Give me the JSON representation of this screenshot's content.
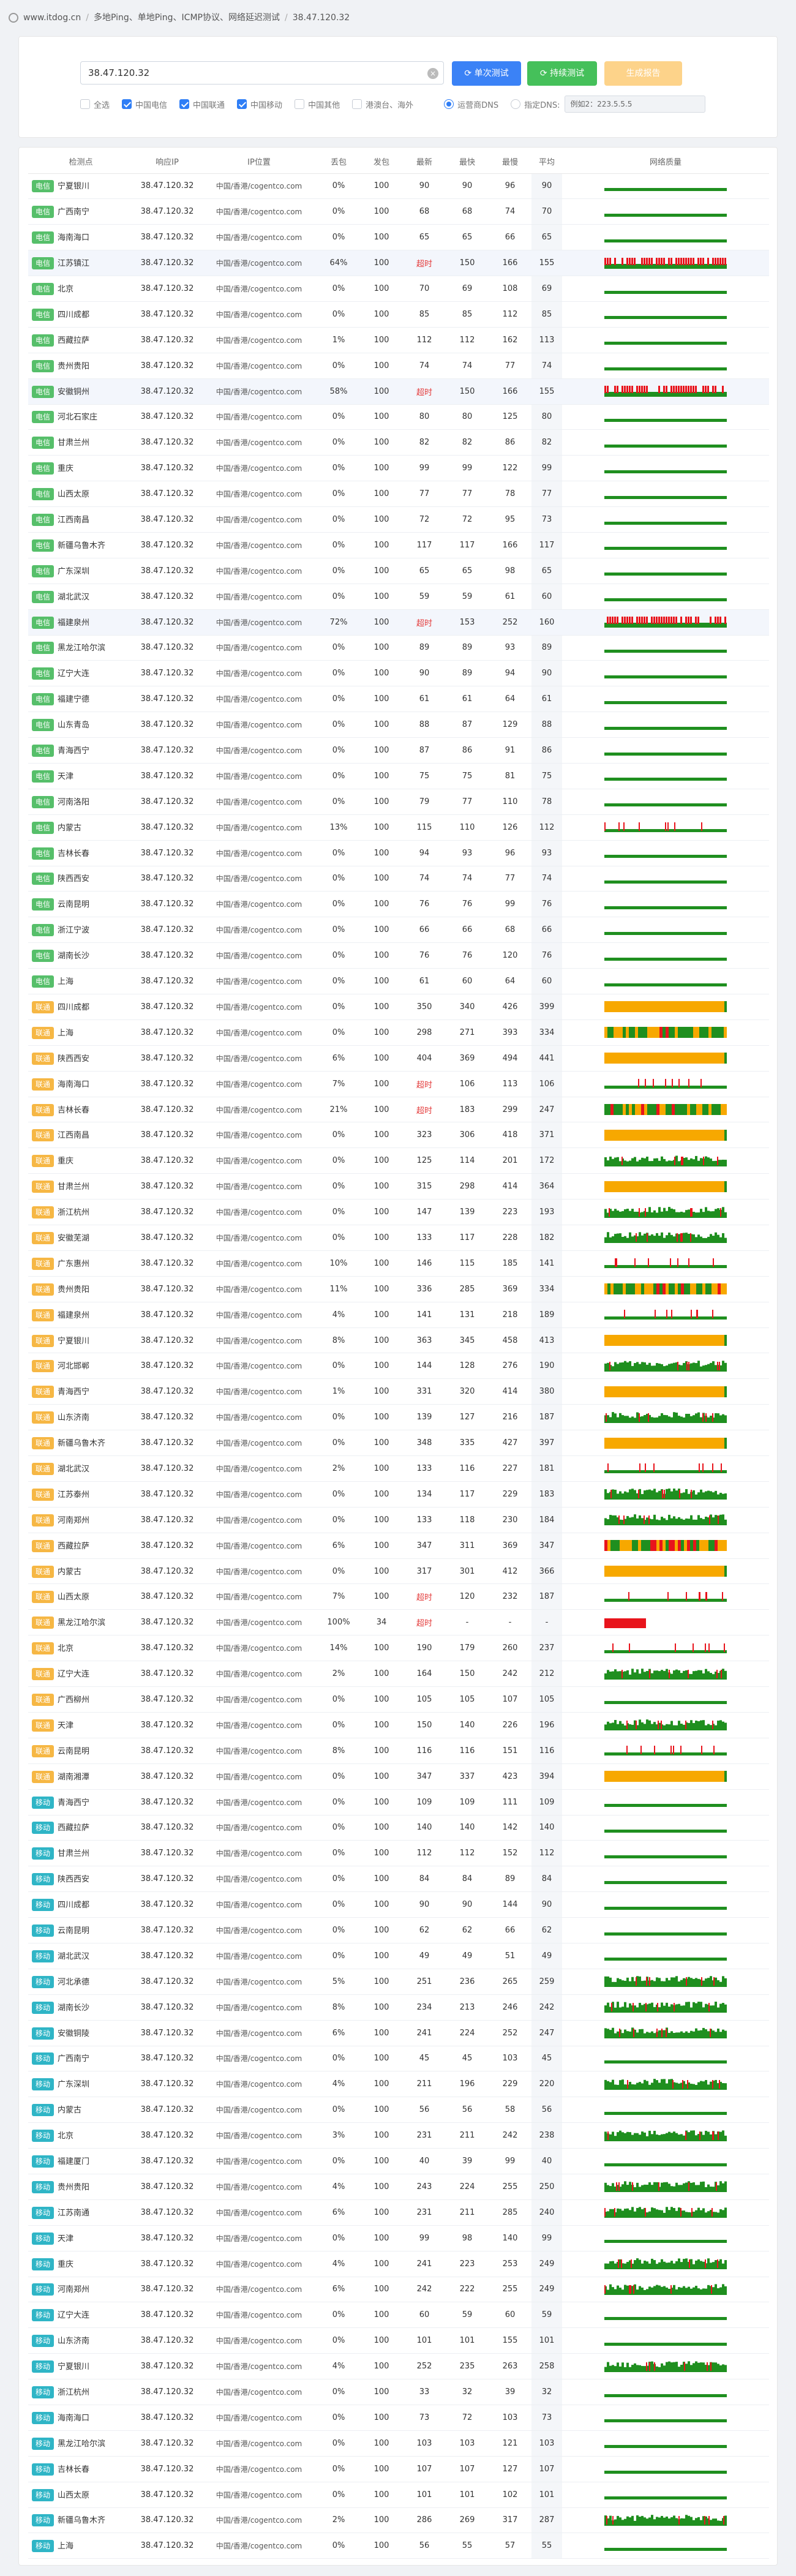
{
  "breadcrumb": {
    "items": [
      "www.itdog.cn",
      "多地Ping、单地Ping、ICMP协议、网络延迟测试",
      "38.47.120.32"
    ]
  },
  "form": {
    "ip_value": "38.47.120.32",
    "btn_single": "单次测试",
    "btn_continuous": "持续测试",
    "btn_generate": "生成报告",
    "checkboxes": [
      {
        "label": "全选",
        "checked": false
      },
      {
        "label": "中国电信",
        "checked": true
      },
      {
        "label": "中国联通",
        "checked": true
      },
      {
        "label": "中国移动",
        "checked": true
      },
      {
        "label": "中国其他",
        "checked": false
      },
      {
        "label": "港澳台、海外",
        "checked": false
      }
    ],
    "radios": [
      {
        "label": "运营商DNS",
        "checked": true
      },
      {
        "label": "指定DNS:",
        "checked": false
      }
    ],
    "dns_value": "例如2：223.5.5.5"
  },
  "table": {
    "headers": [
      "检测点",
      "响应IP",
      "IP位置",
      "丢包",
      "发包",
      "最新",
      "最快",
      "最慢",
      "平均",
      "网络质量"
    ],
    "rows": [
      [
        "电信",
        "宁夏银川",
        "38.47.120.32",
        "中国/香港/cogentco.com",
        "0%",
        "100",
        "90",
        "90",
        "96",
        "90",
        "g"
      ],
      [
        "电信",
        "广西南宁",
        "38.47.120.32",
        "中国/香港/cogentco.com",
        "0%",
        "100",
        "68",
        "68",
        "74",
        "70",
        "g"
      ],
      [
        "电信",
        "海南海口",
        "38.47.120.32",
        "中国/香港/cogentco.com",
        "0%",
        "100",
        "65",
        "65",
        "66",
        "65",
        "g"
      ],
      [
        "电信",
        "江苏镇江",
        "38.47.120.32",
        "中国/香港/cogentco.com",
        "64%",
        "100",
        "超时",
        "150",
        "166",
        "155",
        "r"
      ],
      [
        "电信",
        "北京",
        "38.47.120.32",
        "中国/香港/cogentco.com",
        "0%",
        "100",
        "70",
        "69",
        "108",
        "69",
        "g"
      ],
      [
        "电信",
        "四川成都",
        "38.47.120.32",
        "中国/香港/cogentco.com",
        "0%",
        "100",
        "85",
        "85",
        "112",
        "85",
        "g"
      ],
      [
        "电信",
        "西藏拉萨",
        "38.47.120.32",
        "中国/香港/cogentco.com",
        "1%",
        "100",
        "112",
        "112",
        "162",
        "113",
        "g"
      ],
      [
        "电信",
        "贵州贵阳",
        "38.47.120.32",
        "中国/香港/cogentco.com",
        "0%",
        "100",
        "74",
        "74",
        "77",
        "74",
        "g"
      ],
      [
        "电信",
        "安徽铜州",
        "38.47.120.32",
        "中国/香港/cogentco.com",
        "58%",
        "100",
        "超时",
        "150",
        "166",
        "155",
        "r"
      ],
      [
        "电信",
        "河北石家庄",
        "38.47.120.32",
        "中国/香港/cogentco.com",
        "0%",
        "100",
        "80",
        "80",
        "125",
        "80",
        "g"
      ],
      [
        "电信",
        "甘肃兰州",
        "38.47.120.32",
        "中国/香港/cogentco.com",
        "0%",
        "100",
        "82",
        "82",
        "86",
        "82",
        "g"
      ],
      [
        "电信",
        "重庆",
        "38.47.120.32",
        "中国/香港/cogentco.com",
        "0%",
        "100",
        "99",
        "99",
        "122",
        "99",
        "g"
      ],
      [
        "电信",
        "山西太原",
        "38.47.120.32",
        "中国/香港/cogentco.com",
        "0%",
        "100",
        "77",
        "77",
        "78",
        "77",
        "g"
      ],
      [
        "电信",
        "江西南昌",
        "38.47.120.32",
        "中国/香港/cogentco.com",
        "0%",
        "100",
        "72",
        "72",
        "95",
        "73",
        "g"
      ],
      [
        "电信",
        "新疆乌鲁木齐",
        "38.47.120.32",
        "中国/香港/cogentco.com",
        "0%",
        "100",
        "117",
        "117",
        "166",
        "117",
        "g"
      ],
      [
        "电信",
        "广东深圳",
        "38.47.120.32",
        "中国/香港/cogentco.com",
        "0%",
        "100",
        "65",
        "65",
        "98",
        "65",
        "g"
      ],
      [
        "电信",
        "湖北武汉",
        "38.47.120.32",
        "中国/香港/cogentco.com",
        "0%",
        "100",
        "59",
        "59",
        "61",
        "60",
        "g"
      ],
      [
        "电信",
        "福建泉州",
        "38.47.120.32",
        "中国/香港/cogentco.com",
        "72%",
        "100",
        "超时",
        "153",
        "252",
        "160",
        "r"
      ],
      [
        "电信",
        "黑龙江哈尔滨",
        "38.47.120.32",
        "中国/香港/cogentco.com",
        "0%",
        "100",
        "89",
        "89",
        "93",
        "89",
        "g"
      ],
      [
        "电信",
        "辽宁大连",
        "38.47.120.32",
        "中国/香港/cogentco.com",
        "0%",
        "100",
        "90",
        "89",
        "94",
        "90",
        "g"
      ],
      [
        "电信",
        "福建宁德",
        "38.47.120.32",
        "中国/香港/cogentco.com",
        "0%",
        "100",
        "61",
        "61",
        "64",
        "61",
        "g"
      ],
      [
        "电信",
        "山东青岛",
        "38.47.120.32",
        "中国/香港/cogentco.com",
        "0%",
        "100",
        "88",
        "87",
        "129",
        "88",
        "g"
      ],
      [
        "电信",
        "青海西宁",
        "38.47.120.32",
        "中国/香港/cogentco.com",
        "0%",
        "100",
        "87",
        "86",
        "91",
        "86",
        "g"
      ],
      [
        "电信",
        "天津",
        "38.47.120.32",
        "中国/香港/cogentco.com",
        "0%",
        "100",
        "75",
        "75",
        "81",
        "75",
        "g"
      ],
      [
        "电信",
        "河南洛阳",
        "38.47.120.32",
        "中国/香港/cogentco.com",
        "0%",
        "100",
        "79",
        "77",
        "110",
        "78",
        "g"
      ],
      [
        "电信",
        "内蒙古",
        "38.47.120.32",
        "中国/香港/cogentco.com",
        "13%",
        "100",
        "115",
        "110",
        "126",
        "112",
        "gs"
      ],
      [
        "电信",
        "吉林长春",
        "38.47.120.32",
        "中国/香港/cogentco.com",
        "0%",
        "100",
        "94",
        "93",
        "96",
        "93",
        "g"
      ],
      [
        "电信",
        "陕西西安",
        "38.47.120.32",
        "中国/香港/cogentco.com",
        "0%",
        "100",
        "74",
        "74",
        "77",
        "74",
        "g"
      ],
      [
        "电信",
        "云南昆明",
        "38.47.120.32",
        "中国/香港/cogentco.com",
        "0%",
        "100",
        "76",
        "76",
        "99",
        "76",
        "g"
      ],
      [
        "电信",
        "浙江宁波",
        "38.47.120.32",
        "中国/香港/cogentco.com",
        "0%",
        "100",
        "66",
        "66",
        "68",
        "66",
        "g"
      ],
      [
        "电信",
        "湖南长沙",
        "38.47.120.32",
        "中国/香港/cogentco.com",
        "0%",
        "100",
        "76",
        "76",
        "120",
        "76",
        "g"
      ],
      [
        "电信",
        "上海",
        "38.47.120.32",
        "中国/香港/cogentco.com",
        "0%",
        "100",
        "61",
        "60",
        "64",
        "60",
        "g"
      ],
      [
        "联通",
        "四川成都",
        "38.47.120.32",
        "中国/香港/cogentco.com",
        "0%",
        "100",
        "350",
        "340",
        "426",
        "399",
        "o"
      ],
      [
        "联通",
        "上海",
        "38.47.120.32",
        "中国/香港/cogentco.com",
        "0%",
        "100",
        "298",
        "271",
        "393",
        "334",
        "m"
      ],
      [
        "联通",
        "陕西西安",
        "38.47.120.32",
        "中国/香港/cogentco.com",
        "6%",
        "100",
        "404",
        "369",
        "494",
        "441",
        "o"
      ],
      [
        "联通",
        "海南海口",
        "38.47.120.32",
        "中国/香港/cogentco.com",
        "7%",
        "100",
        "超时",
        "106",
        "113",
        "106",
        "gs"
      ],
      [
        "联通",
        "吉林长春",
        "38.47.120.32",
        "中国/香港/cogentco.com",
        "21%",
        "100",
        "超时",
        "183",
        "299",
        "247",
        "m"
      ],
      [
        "联通",
        "江西南昌",
        "38.47.120.32",
        "中国/香港/cogentco.com",
        "0%",
        "100",
        "323",
        "306",
        "418",
        "371",
        "o"
      ],
      [
        "联通",
        "重庆",
        "38.47.120.32",
        "中国/香港/cogentco.com",
        "0%",
        "100",
        "125",
        "114",
        "201",
        "172",
        "gh"
      ],
      [
        "联通",
        "甘肃兰州",
        "38.47.120.32",
        "中国/香港/cogentco.com",
        "0%",
        "100",
        "315",
        "298",
        "414",
        "364",
        "o"
      ],
      [
        "联通",
        "浙江杭州",
        "38.47.120.32",
        "中国/香港/cogentco.com",
        "0%",
        "100",
        "147",
        "139",
        "223",
        "193",
        "gh"
      ],
      [
        "联通",
        "安徽芜湖",
        "38.47.120.32",
        "中国/香港/cogentco.com",
        "0%",
        "100",
        "133",
        "117",
        "228",
        "182",
        "gh"
      ],
      [
        "联通",
        "广东惠州",
        "38.47.120.32",
        "中国/香港/cogentco.com",
        "10%",
        "100",
        "146",
        "115",
        "185",
        "141",
        "gs"
      ],
      [
        "联通",
        "贵州贵阳",
        "38.47.120.32",
        "中国/香港/cogentco.com",
        "11%",
        "100",
        "336",
        "285",
        "369",
        "334",
        "m"
      ],
      [
        "联通",
        "福建泉州",
        "38.47.120.32",
        "中国/香港/cogentco.com",
        "4%",
        "100",
        "141",
        "131",
        "218",
        "189",
        "gs"
      ],
      [
        "联通",
        "宁夏银川",
        "38.47.120.32",
        "中国/香港/cogentco.com",
        "8%",
        "100",
        "363",
        "345",
        "458",
        "413",
        "o"
      ],
      [
        "联通",
        "河北邯郸",
        "38.47.120.32",
        "中国/香港/cogentco.com",
        "0%",
        "100",
        "144",
        "128",
        "276",
        "190",
        "gh"
      ],
      [
        "联通",
        "青海西宁",
        "38.47.120.32",
        "中国/香港/cogentco.com",
        "1%",
        "100",
        "331",
        "320",
        "414",
        "380",
        "o"
      ],
      [
        "联通",
        "山东济南",
        "38.47.120.32",
        "中国/香港/cogentco.com",
        "0%",
        "100",
        "139",
        "127",
        "216",
        "187",
        "gh"
      ],
      [
        "联通",
        "新疆乌鲁木齐",
        "38.47.120.32",
        "中国/香港/cogentco.com",
        "0%",
        "100",
        "348",
        "335",
        "427",
        "397",
        "o"
      ],
      [
        "联通",
        "湖北武汉",
        "38.47.120.32",
        "中国/香港/cogentco.com",
        "2%",
        "100",
        "133",
        "116",
        "227",
        "181",
        "gs"
      ],
      [
        "联通",
        "江苏泰州",
        "38.47.120.32",
        "中国/香港/cogentco.com",
        "0%",
        "100",
        "134",
        "117",
        "229",
        "183",
        "gh"
      ],
      [
        "联通",
        "河南郑州",
        "38.47.120.32",
        "中国/香港/cogentco.com",
        "0%",
        "100",
        "133",
        "118",
        "230",
        "184",
        "gh"
      ],
      [
        "联通",
        "西藏拉萨",
        "38.47.120.32",
        "中国/香港/cogentco.com",
        "6%",
        "100",
        "347",
        "311",
        "369",
        "347",
        "m"
      ],
      [
        "联通",
        "内蒙古",
        "38.47.120.32",
        "中国/香港/cogentco.com",
        "0%",
        "100",
        "317",
        "301",
        "412",
        "366",
        "o"
      ],
      [
        "联通",
        "山西太原",
        "38.47.120.32",
        "中国/香港/cogentco.com",
        "7%",
        "100",
        "超时",
        "120",
        "232",
        "187",
        "gs"
      ],
      [
        "联通",
        "黑龙江哈尔滨",
        "38.47.120.32",
        "中国/香港/cogentco.com",
        "100%",
        "34",
        "超时",
        "-",
        "-",
        "-",
        "rs"
      ],
      [
        "联通",
        "北京",
        "38.47.120.32",
        "中国/香港/cogentco.com",
        "14%",
        "100",
        "190",
        "179",
        "260",
        "237",
        "gs"
      ],
      [
        "联通",
        "辽宁大连",
        "38.47.120.32",
        "中国/香港/cogentco.com",
        "2%",
        "100",
        "164",
        "150",
        "242",
        "212",
        "gh"
      ],
      [
        "联通",
        "广西柳州",
        "38.47.120.32",
        "中国/香港/cogentco.com",
        "0%",
        "100",
        "105",
        "105",
        "107",
        "105",
        "g"
      ],
      [
        "联通",
        "天津",
        "38.47.120.32",
        "中国/香港/cogentco.com",
        "0%",
        "100",
        "150",
        "140",
        "226",
        "196",
        "gh"
      ],
      [
        "联通",
        "云南昆明",
        "38.47.120.32",
        "中国/香港/cogentco.com",
        "8%",
        "100",
        "116",
        "116",
        "151",
        "116",
        "gs"
      ],
      [
        "联通",
        "湖南湘潭",
        "38.47.120.32",
        "中国/香港/cogentco.com",
        "0%",
        "100",
        "347",
        "337",
        "423",
        "394",
        "o"
      ],
      [
        "移动",
        "青海西宁",
        "38.47.120.32",
        "中国/香港/cogentco.com",
        "0%",
        "100",
        "109",
        "109",
        "111",
        "109",
        "g"
      ],
      [
        "移动",
        "西藏拉萨",
        "38.47.120.32",
        "中国/香港/cogentco.com",
        "0%",
        "100",
        "140",
        "140",
        "142",
        "140",
        "g"
      ],
      [
        "移动",
        "甘肃兰州",
        "38.47.120.32",
        "中国/香港/cogentco.com",
        "0%",
        "100",
        "112",
        "112",
        "152",
        "112",
        "g"
      ],
      [
        "移动",
        "陕西西安",
        "38.47.120.32",
        "中国/香港/cogentco.com",
        "0%",
        "100",
        "84",
        "84",
        "89",
        "84",
        "g"
      ],
      [
        "移动",
        "四川成都",
        "38.47.120.32",
        "中国/香港/cogentco.com",
        "0%",
        "100",
        "90",
        "90",
        "144",
        "90",
        "g"
      ],
      [
        "移动",
        "云南昆明",
        "38.47.120.32",
        "中国/香港/cogentco.com",
        "0%",
        "100",
        "62",
        "62",
        "66",
        "62",
        "g"
      ],
      [
        "移动",
        "湖北武汉",
        "38.47.120.32",
        "中国/香港/cogentco.com",
        "0%",
        "100",
        "49",
        "49",
        "51",
        "49",
        "g"
      ],
      [
        "移动",
        "河北承德",
        "38.47.120.32",
        "中国/香港/cogentco.com",
        "5%",
        "100",
        "251",
        "236",
        "265",
        "259",
        "gh"
      ],
      [
        "移动",
        "湖南长沙",
        "38.47.120.32",
        "中国/香港/cogentco.com",
        "8%",
        "100",
        "234",
        "213",
        "246",
        "242",
        "gh"
      ],
      [
        "移动",
        "安徽铜陵",
        "38.47.120.32",
        "中国/香港/cogentco.com",
        "6%",
        "100",
        "241",
        "224",
        "252",
        "247",
        "gh"
      ],
      [
        "移动",
        "广西南宁",
        "38.47.120.32",
        "中国/香港/cogentco.com",
        "0%",
        "100",
        "45",
        "45",
        "103",
        "45",
        "g"
      ],
      [
        "移动",
        "广东深圳",
        "38.47.120.32",
        "中国/香港/cogentco.com",
        "4%",
        "100",
        "211",
        "196",
        "229",
        "220",
        "gh"
      ],
      [
        "移动",
        "内蒙古",
        "38.47.120.32",
        "中国/香港/cogentco.com",
        "0%",
        "100",
        "56",
        "56",
        "58",
        "56",
        "g"
      ],
      [
        "移动",
        "北京",
        "38.47.120.32",
        "中国/香港/cogentco.com",
        "3%",
        "100",
        "231",
        "211",
        "242",
        "238",
        "gh"
      ],
      [
        "移动",
        "福建厦门",
        "38.47.120.32",
        "中国/香港/cogentco.com",
        "0%",
        "100",
        "40",
        "39",
        "99",
        "40",
        "g"
      ],
      [
        "移动",
        "贵州贵阳",
        "38.47.120.32",
        "中国/香港/cogentco.com",
        "4%",
        "100",
        "243",
        "224",
        "255",
        "250",
        "gh"
      ],
      [
        "移动",
        "江苏南通",
        "38.47.120.32",
        "中国/香港/cogentco.com",
        "6%",
        "100",
        "231",
        "211",
        "285",
        "240",
        "gh"
      ],
      [
        "移动",
        "天津",
        "38.47.120.32",
        "中国/香港/cogentco.com",
        "0%",
        "100",
        "99",
        "98",
        "140",
        "99",
        "g"
      ],
      [
        "移动",
        "重庆",
        "38.47.120.32",
        "中国/香港/cogentco.com",
        "4%",
        "100",
        "241",
        "223",
        "253",
        "249",
        "gh"
      ],
      [
        "移动",
        "河南郑州",
        "38.47.120.32",
        "中国/香港/cogentco.com",
        "6%",
        "100",
        "242",
        "222",
        "255",
        "249",
        "gh"
      ],
      [
        "移动",
        "辽宁大连",
        "38.47.120.32",
        "中国/香港/cogentco.com",
        "0%",
        "100",
        "60",
        "59",
        "60",
        "59",
        "g"
      ],
      [
        "移动",
        "山东济南",
        "38.47.120.32",
        "中国/香港/cogentco.com",
        "0%",
        "100",
        "101",
        "101",
        "155",
        "101",
        "g"
      ],
      [
        "移动",
        "宁夏银川",
        "38.47.120.32",
        "中国/香港/cogentco.com",
        "4%",
        "100",
        "252",
        "235",
        "263",
        "258",
        "gh"
      ],
      [
        "移动",
        "浙江杭州",
        "38.47.120.32",
        "中国/香港/cogentco.com",
        "0%",
        "100",
        "33",
        "32",
        "39",
        "32",
        "g"
      ],
      [
        "移动",
        "海南海口",
        "38.47.120.32",
        "中国/香港/cogentco.com",
        "0%",
        "100",
        "73",
        "72",
        "103",
        "73",
        "g"
      ],
      [
        "移动",
        "黑龙江哈尔滨",
        "38.47.120.32",
        "中国/香港/cogentco.com",
        "0%",
        "100",
        "103",
        "103",
        "121",
        "103",
        "g"
      ],
      [
        "移动",
        "吉林长春",
        "38.47.120.32",
        "中国/香港/cogentco.com",
        "0%",
        "100",
        "107",
        "107",
        "127",
        "107",
        "g"
      ],
      [
        "移动",
        "山西太原",
        "38.47.120.32",
        "中国/香港/cogentco.com",
        "0%",
        "100",
        "101",
        "101",
        "102",
        "101",
        "g"
      ],
      [
        "移动",
        "新疆乌鲁木齐",
        "38.47.120.32",
        "中国/香港/cogentco.com",
        "2%",
        "100",
        "286",
        "269",
        "317",
        "287",
        "gh"
      ],
      [
        "移动",
        "上海",
        "38.47.120.32",
        "中国/香港/cogentco.com",
        "0%",
        "100",
        "56",
        "55",
        "57",
        "55",
        "g"
      ]
    ]
  },
  "colors": {
    "good": "#1f8f1f",
    "orange": "#f7a800",
    "loss": "#e8141c",
    "telecom": "#56bf6a",
    "unicom": "#f6b744",
    "mobile": "#2fb5c6"
  }
}
